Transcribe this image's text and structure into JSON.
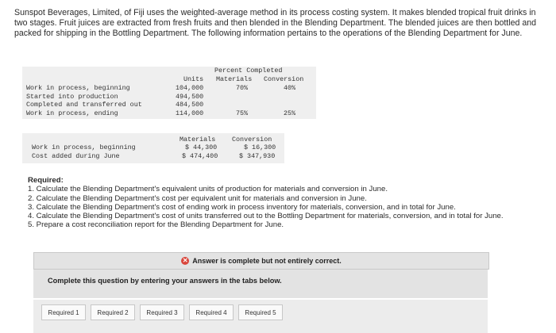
{
  "intro": {
    "text": "Sunspot Beverages, Limited, of Fiji uses the weighted-average method in its process costing system. It makes blended tropical fruit drinks in two stages. Fruit juices are extracted from fresh fruits and then blended in the Blending Department. The blended juices are then bottled and packed for shipping in the Bottling Department. The following information pertains to the operations of the Blending Department for June."
  },
  "units_table": {
    "header_percent": "Percent Completed",
    "header_units": "Units",
    "header_materials": "Materials",
    "header_conversion": "Conversion",
    "rows": [
      {
        "label": "Work in process, beginning",
        "units": "104,000",
        "materials": "70%",
        "conversion": "40%"
      },
      {
        "label": "Started into production",
        "units": "494,500",
        "materials": "",
        "conversion": ""
      },
      {
        "label": "Completed and transferred out",
        "units": "484,500",
        "materials": "",
        "conversion": ""
      },
      {
        "label": "Work in process, ending",
        "units": "114,000",
        "materials": "75%",
        "conversion": "25%"
      }
    ]
  },
  "cost_table": {
    "header_materials": "Materials",
    "header_conversion": "Conversion",
    "rows": [
      {
        "label": "Work in process, beginning",
        "materials": "$ 44,300",
        "conversion": "$ 16,300"
      },
      {
        "label": "Cost added during June",
        "materials": "$ 474,400",
        "conversion": "$ 347,930"
      }
    ]
  },
  "required": {
    "heading": "Required:",
    "items": [
      "1. Calculate the Blending Department's equivalent units of production for materials and conversion in June.",
      "2. Calculate the Blending Department's cost per equivalent unit for materials and conversion in June.",
      "3. Calculate the Blending Department's cost of ending work in process inventory for materials, conversion, and in total for June.",
      "4. Calculate the Blending Department's cost of units transferred out to the Bottling Department for materials, conversion, and in total for June.",
      "5. Prepare a cost reconciliation report for the Blending Department for June."
    ]
  },
  "status": {
    "icon": "x-circle-icon",
    "text": "Answer is complete but not entirely correct.",
    "color": "#d9453b"
  },
  "instructions": "Complete this question by entering your answers in the tabs below.",
  "tabs": [
    "Required 1",
    "Required 2",
    "Required 3",
    "Required 4",
    "Required 5"
  ]
}
